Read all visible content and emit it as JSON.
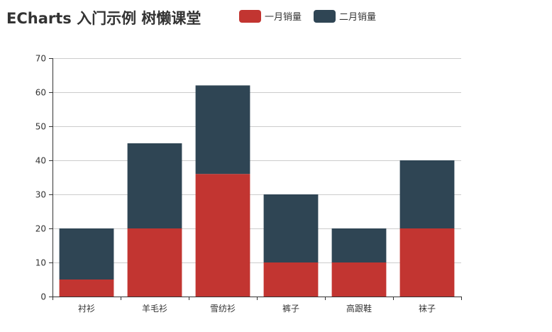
{
  "chart_data": {
    "type": "bar",
    "stacked": true,
    "title": "ECharts 入门示例 树懒课堂",
    "categories": [
      "衬衫",
      "羊毛衫",
      "雪纺衫",
      "裤子",
      "高跟鞋",
      "袜子"
    ],
    "series": [
      {
        "name": "一月销量",
        "values": [
          5,
          20,
          36,
          10,
          10,
          20
        ],
        "color": "#c23531"
      },
      {
        "name": "二月销量",
        "values": [
          15,
          25,
          26,
          20,
          10,
          20
        ],
        "color": "#2f4554"
      }
    ],
    "ylim": [
      0,
      70
    ],
    "yticks": [
      0,
      10,
      20,
      30,
      40,
      50,
      60,
      70
    ],
    "xlabel": "",
    "ylabel": "",
    "grid": true,
    "legend_position": "top-center"
  }
}
